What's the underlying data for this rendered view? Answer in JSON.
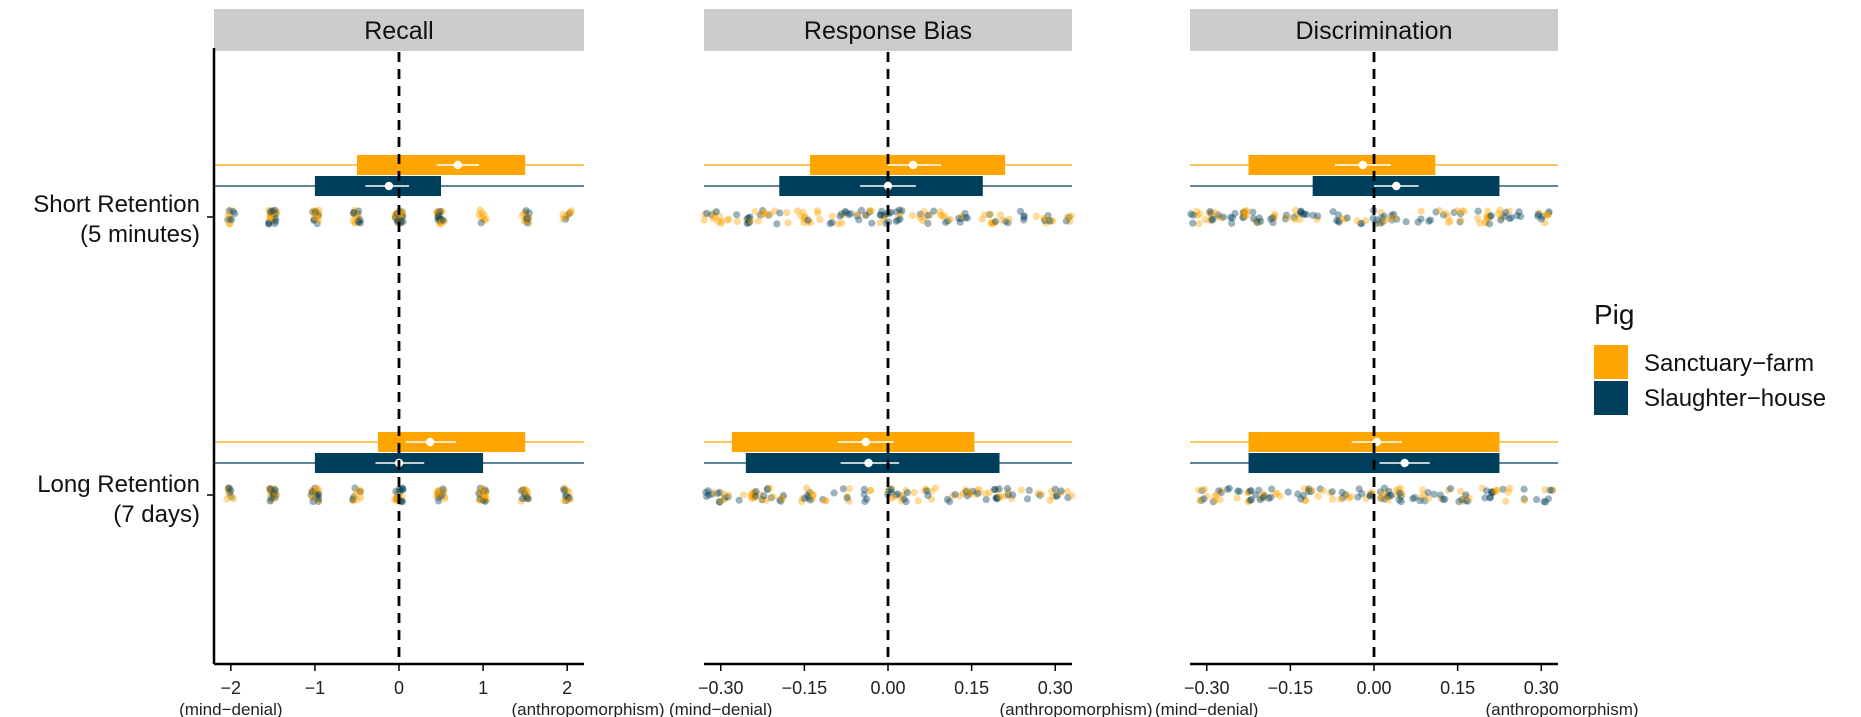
{
  "chart_data": {
    "type": "boxplot",
    "rows": [
      {
        "label_line1": "Short Retention",
        "label_line2": "(5 minutes)"
      },
      {
        "label_line1": "Long Retention",
        "label_line2": "(7 days)"
      }
    ],
    "legend": {
      "title": "Pig",
      "placement": "right",
      "entries": [
        {
          "name": "Sanctuary−farm",
          "color": "#FFA500"
        },
        {
          "name": "Slaughter−house",
          "color": "#003F5C"
        }
      ]
    },
    "reference_line": 0,
    "panels": [
      {
        "title": "Recall",
        "xlim": [
          -2.2,
          2.2
        ],
        "ticks": [
          -2,
          -1,
          0,
          1,
          2
        ],
        "tick_labels": [
          "−2",
          "−1",
          "0",
          "1",
          "2"
        ],
        "left_note": "(mind−denial)",
        "right_note": "(anthropomorphism)",
        "discrete_points": true,
        "boxes": [
          {
            "row": 0,
            "group": 0,
            "whisker": [
              -2.2,
              2.2
            ],
            "q1": -0.5,
            "q3": 1.5,
            "mean": 0.7,
            "ci": [
              0.45,
              0.95
            ]
          },
          {
            "row": 0,
            "group": 1,
            "whisker": [
              -2.2,
              2.2
            ],
            "q1": -1.0,
            "q3": 0.5,
            "mean": -0.12,
            "ci": [
              -0.4,
              0.12
            ]
          },
          {
            "row": 1,
            "group": 0,
            "whisker": [
              -2.2,
              2.2
            ],
            "q1": -0.25,
            "q3": 1.5,
            "mean": 0.37,
            "ci": [
              0.08,
              0.68
            ]
          },
          {
            "row": 1,
            "group": 1,
            "whisker": [
              -2.2,
              2.2
            ],
            "q1": -1.0,
            "q3": 1.0,
            "mean": 0.0,
            "ci": [
              -0.28,
              0.3
            ]
          }
        ]
      },
      {
        "title": "Response Bias",
        "xlim": [
          -0.33,
          0.33
        ],
        "ticks": [
          -0.3,
          -0.15,
          0.0,
          0.15,
          0.3
        ],
        "tick_labels": [
          "−0.30",
          "−0.15",
          "0.00",
          "0.15",
          "0.30"
        ],
        "left_note": "(mind−denial)",
        "right_note": "(anthropomorphism)",
        "discrete_points": false,
        "boxes": [
          {
            "row": 0,
            "group": 0,
            "whisker": [
              -0.33,
              0.33
            ],
            "q1": -0.14,
            "q3": 0.21,
            "mean": 0.045,
            "ci": [
              0.0,
              0.095
            ]
          },
          {
            "row": 0,
            "group": 1,
            "whisker": [
              -0.33,
              0.33
            ],
            "q1": -0.195,
            "q3": 0.17,
            "mean": 0.0,
            "ci": [
              -0.05,
              0.05
            ]
          },
          {
            "row": 1,
            "group": 0,
            "whisker": [
              -0.33,
              0.33
            ],
            "q1": -0.28,
            "q3": 0.155,
            "mean": -0.04,
            "ci": [
              -0.09,
              0.01
            ]
          },
          {
            "row": 1,
            "group": 1,
            "whisker": [
              -0.33,
              0.33
            ],
            "q1": -0.255,
            "q3": 0.2,
            "mean": -0.035,
            "ci": [
              -0.085,
              0.02
            ]
          }
        ]
      },
      {
        "title": "Discrimination",
        "xlim": [
          -0.33,
          0.33
        ],
        "ticks": [
          -0.3,
          -0.15,
          0.0,
          0.15,
          0.3
        ],
        "tick_labels": [
          "−0.30",
          "−0.15",
          "0.00",
          "0.15",
          "0.30"
        ],
        "left_note": "(mind−denial)",
        "right_note": "(anthropomorphism)",
        "discrete_points": false,
        "boxes": [
          {
            "row": 0,
            "group": 0,
            "whisker": [
              -0.33,
              0.33
            ],
            "q1": -0.225,
            "q3": 0.11,
            "mean": -0.02,
            "ci": [
              -0.07,
              0.03
            ]
          },
          {
            "row": 0,
            "group": 1,
            "whisker": [
              -0.33,
              0.33
            ],
            "q1": -0.11,
            "q3": 0.225,
            "mean": 0.04,
            "ci": [
              0.0,
              0.08
            ]
          },
          {
            "row": 1,
            "group": 0,
            "whisker": [
              -0.33,
              0.33
            ],
            "q1": -0.225,
            "q3": 0.225,
            "mean": 0.005,
            "ci": [
              -0.04,
              0.05
            ]
          },
          {
            "row": 1,
            "group": 1,
            "whisker": [
              -0.33,
              0.33
            ],
            "q1": -0.225,
            "q3": 0.225,
            "mean": 0.055,
            "ci": [
              0.01,
              0.1
            ]
          }
        ]
      }
    ]
  }
}
